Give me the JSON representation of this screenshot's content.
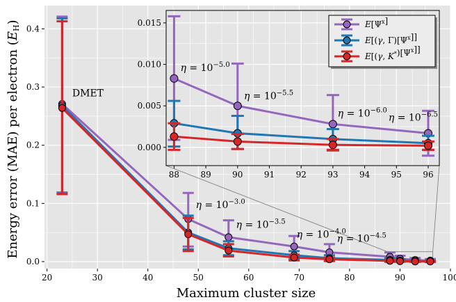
{
  "chart_data": {
    "type": "line",
    "xlabel": "Maximum cluster size",
    "ylabel": "Energy error (MAE) per electron (E_H)",
    "ylabel_parts": {
      "main": "Energy error (MAE) per electron (",
      "symbol": "E",
      "sub": "H",
      "close": ")"
    },
    "xlim": [
      19.5,
      100
    ],
    "ylim": [
      -0.012,
      0.44
    ],
    "xticks": [
      20,
      30,
      40,
      50,
      60,
      70,
      80,
      90,
      100
    ],
    "yticks": [
      0.0,
      0.1,
      0.2,
      0.3,
      0.4
    ],
    "grid": true,
    "colors": {
      "purple": "#9467bd",
      "blue": "#1f77b4",
      "red": "#d62728"
    },
    "series": [
      {
        "name": "E[Ψˣ]",
        "color": "#9467bd",
        "x": [
          23,
          48,
          56,
          69,
          76,
          88,
          90,
          93,
          96
        ],
        "y": [
          0.271,
          0.073,
          0.042,
          0.026,
          0.016,
          0.0083,
          0.005,
          0.0028,
          0.0017
        ],
        "err_low": [
          0.119,
          0.026,
          0.022,
          0.01,
          0.006,
          0.0009,
          -0.0002,
          -0.0004,
          -0.001
        ],
        "err_high": [
          0.421,
          0.118,
          0.071,
          0.044,
          0.03,
          0.0158,
          0.0101,
          0.0063,
          0.0044
        ]
      },
      {
        "name": "E[(γ,Γ)[Ψˣ]]",
        "color": "#1f77b4",
        "x": [
          23,
          48,
          56,
          69,
          76,
          88,
          90,
          93,
          96
        ],
        "y": [
          0.268,
          0.05,
          0.023,
          0.011,
          0.006,
          0.0029,
          0.0017,
          0.001,
          0.0005
        ],
        "err_low": [
          0.117,
          0.021,
          0.011,
          0.004,
          0.001,
          0.0001,
          -0.0002,
          -0.0003,
          -0.0003
        ],
        "err_high": [
          0.418,
          0.079,
          0.035,
          0.018,
          0.011,
          0.0056,
          0.0038,
          0.0022,
          0.0014
        ]
      },
      {
        "name": "E[(γ,K*)[Ψˣ]]",
        "color": "#d62728",
        "x": [
          23,
          48,
          56,
          69,
          76,
          88,
          90,
          93,
          96
        ],
        "y": [
          0.264,
          0.047,
          0.019,
          0.007,
          0.004,
          0.0013,
          0.0007,
          0.0003,
          0.0002
        ],
        "err_low": [
          0.116,
          0.018,
          0.009,
          0.002,
          0.001,
          -0.0003,
          -0.0002,
          -0.0003,
          -0.0003
        ],
        "err_high": [
          0.413,
          0.075,
          0.03,
          0.012,
          0.007,
          0.0029,
          0.0016,
          0.001,
          0.0007
        ]
      }
    ],
    "legend": {
      "placement": "top-right of inset",
      "entries": [
        {
          "label_parts": [
            {
              "t": "E",
              "i": true
            },
            {
              "t": "[Ψ"
            },
            {
              "t": "x",
              "sup": true
            },
            {
              "t": "]"
            }
          ],
          "color": "#9467bd"
        },
        {
          "label_parts": [
            {
              "t": "E",
              "i": true
            },
            {
              "t": "[("
            },
            {
              "t": "γ",
              "i": true
            },
            {
              "t": ", Γ)[Ψ"
            },
            {
              "t": "x",
              "sup": true
            },
            {
              "t": "]]"
            }
          ],
          "color": "#1f77b4"
        },
        {
          "label_parts": [
            {
              "t": "E",
              "i": true
            },
            {
              "t": "[("
            },
            {
              "t": "γ",
              "i": true
            },
            {
              "t": ", "
            },
            {
              "t": "K",
              "i": true
            },
            {
              "t": "*",
              "sup": true
            },
            {
              "t": ")[Ψ"
            },
            {
              "t": "x",
              "sup": true
            },
            {
              "t": "]]"
            }
          ],
          "color": "#d62728"
        }
      ]
    },
    "annotations": [
      {
        "text": "DMET",
        "x": 25,
        "y": 0.284
      },
      {
        "base": "η = 10",
        "exp": "−3.0",
        "x": 49.5,
        "y": 0.092
      },
      {
        "base": "η = 10",
        "exp": "−3.5",
        "x": 57.5,
        "y": 0.058
      },
      {
        "base": "η = 10",
        "exp": "−4.0",
        "x": 69.5,
        "y": 0.041
      },
      {
        "base": "η = 10",
        "exp": "−4.5",
        "x": 77.5,
        "y": 0.034
      }
    ],
    "inset": {
      "xlim": [
        87.75,
        96.35
      ],
      "ylim": [
        -0.0022,
        0.0165
      ],
      "xticks": [
        88,
        89,
        90,
        91,
        92,
        93,
        94,
        95,
        96
      ],
      "yticks": [
        0.0,
        0.005,
        0.01,
        0.015
      ],
      "ytick_labels": [
        "0.000",
        "0.005",
        "0.010",
        "0.015"
      ],
      "zoom_region": {
        "x": [
          87.5,
          96.5
        ],
        "y": [
          -0.001,
          0.017
        ]
      },
      "annotations": [
        {
          "base": "η = 10",
          "exp": "−5.0",
          "x": 88.2,
          "y": 0.0092
        },
        {
          "base": "η = 10",
          "exp": "−5.5",
          "x": 90.2,
          "y": 0.0058
        },
        {
          "base": "η = 10",
          "exp": "−6.0",
          "x": 93.15,
          "y": 0.0037
        },
        {
          "base": "η = 10",
          "exp": "−6.5",
          "x": 94.75,
          "y": 0.0032
        }
      ]
    }
  }
}
